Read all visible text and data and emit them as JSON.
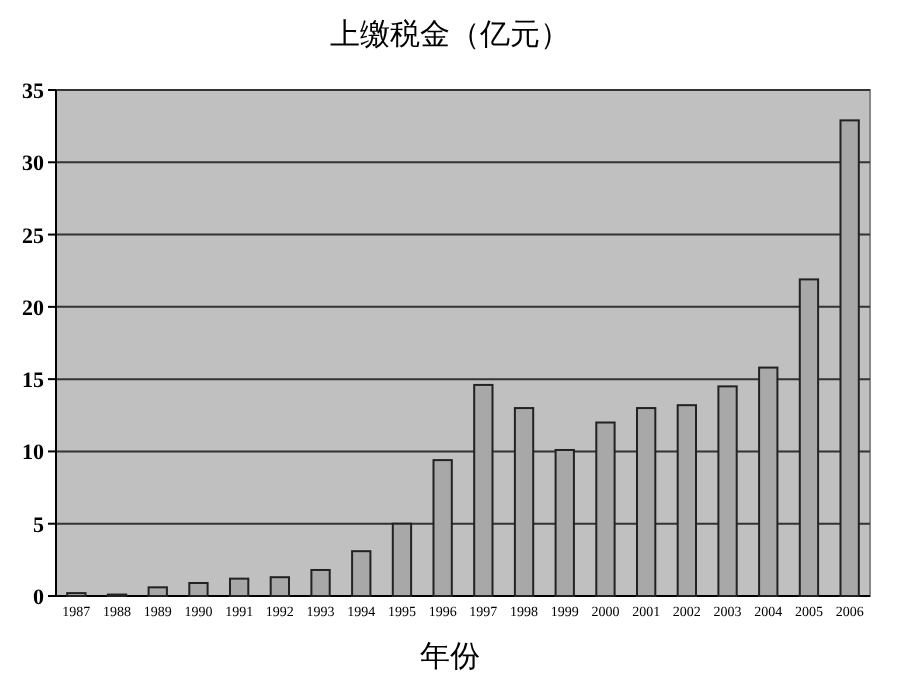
{
  "chart_data": {
    "type": "bar",
    "title": "上缴税金（亿元）",
    "xlabel": "年份",
    "categories": [
      "1987",
      "1988",
      "1989",
      "1990",
      "1991",
      "1992",
      "1993",
      "1994",
      "1995",
      "1996",
      "1997",
      "1998",
      "1999",
      "2000",
      "2001",
      "2002",
      "2003",
      "2004",
      "2005",
      "2006"
    ],
    "values": [
      0.2,
      0.1,
      0.6,
      0.9,
      1.2,
      1.3,
      1.8,
      3.1,
      5.0,
      9.4,
      14.6,
      13.0,
      10.1,
      12.0,
      13.0,
      13.2,
      14.5,
      15.8,
      21.9,
      32.9
    ],
    "color": "#a8a8a8",
    "ylim": [
      0,
      35
    ],
    "yticks": [
      0,
      5,
      10,
      15,
      20,
      25,
      30,
      35
    ],
    "grid": "y"
  }
}
